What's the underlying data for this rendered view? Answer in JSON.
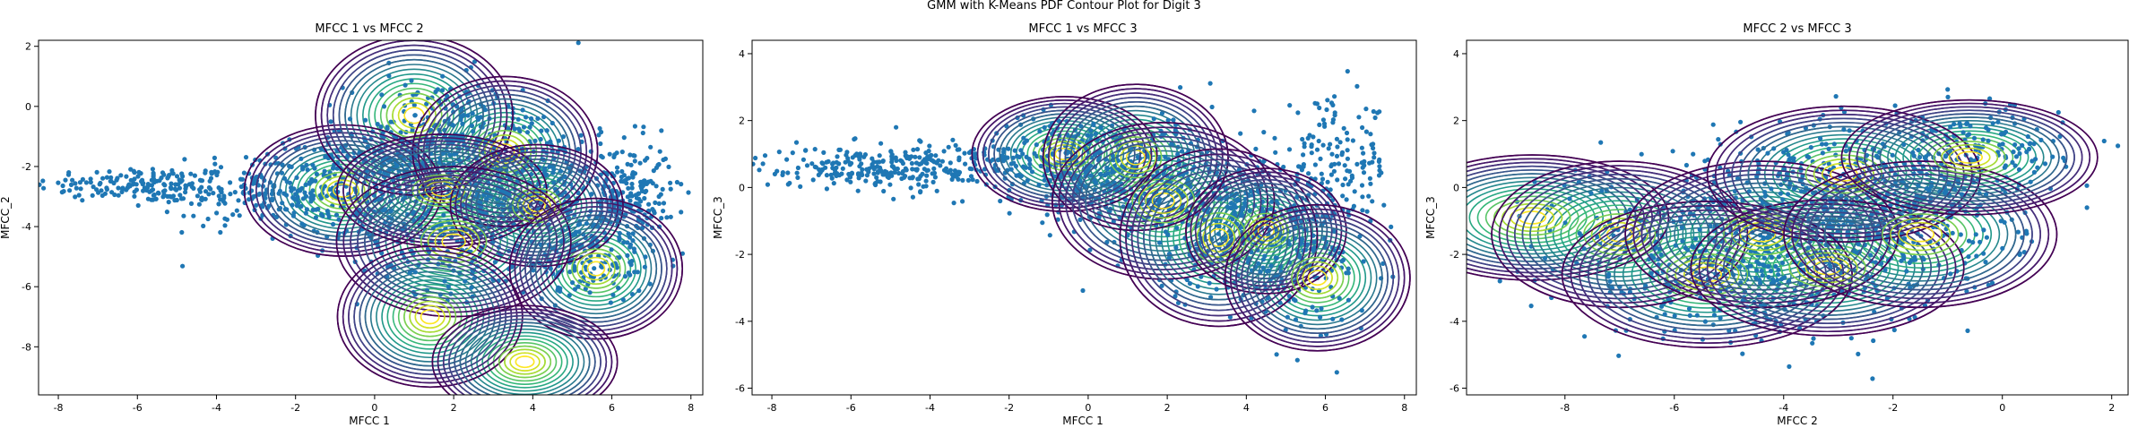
{
  "figure": {
    "suptitle": "GMM with K-Means PDF Contour Plot for Digit 3"
  },
  "colors": {
    "points": "#1f77b4",
    "axes": "#000000",
    "contour_low": "#440154",
    "contour_high": "#fde725"
  },
  "chart_data": [
    {
      "type": "scatter",
      "title": "MFCC 1 vs MFCC 2",
      "xlabel": "MFCC 1",
      "ylabel": "MFCC_2",
      "xlim": [
        -8.5,
        8.3
      ],
      "ylim": [
        -9.6,
        2.2
      ],
      "xticks": [
        -8,
        -6,
        -4,
        -2,
        0,
        2,
        4,
        6,
        8
      ],
      "yticks": [
        2,
        0,
        -2,
        -4,
        -6,
        -8
      ],
      "grid": false,
      "overlay": "gmm-pdf-contours",
      "components": [
        {
          "mean": [
            -0.8,
            -2.8
          ],
          "sd": [
            1.6,
            1.4
          ]
        },
        {
          "mean": [
            1.0,
            -0.3
          ],
          "sd": [
            1.6,
            1.7
          ]
        },
        {
          "mean": [
            3.3,
            -1.5
          ],
          "sd": [
            1.5,
            1.6
          ]
        },
        {
          "mean": [
            1.7,
            -2.8
          ],
          "sd": [
            1.7,
            1.2
          ]
        },
        {
          "mean": [
            4.1,
            -3.3
          ],
          "sd": [
            1.4,
            1.3
          ]
        },
        {
          "mean": [
            2.0,
            -4.5
          ],
          "sd": [
            1.9,
            1.6
          ]
        },
        {
          "mean": [
            5.6,
            -5.4
          ],
          "sd": [
            1.4,
            1.5
          ]
        },
        {
          "mean": [
            1.4,
            -7.0
          ],
          "sd": [
            1.5,
            1.5
          ]
        },
        {
          "mean": [
            3.8,
            -8.5
          ],
          "sd": [
            1.5,
            1.2
          ]
        }
      ],
      "clusters": [
        {
          "center": [
            -6.0,
            -2.6
          ],
          "spread": [
            1.3,
            0.3
          ],
          "n": 150
        },
        {
          "center": [
            -3.0,
            -2.8
          ],
          "spread": [
            1.2,
            0.6
          ],
          "n": 200
        },
        {
          "center": [
            -0.5,
            -2.7
          ],
          "spread": [
            1.0,
            0.9
          ],
          "n": 220
        },
        {
          "center": [
            1.5,
            -1.2
          ],
          "spread": [
            1.1,
            1.1
          ],
          "n": 240
        },
        {
          "center": [
            3.5,
            -2.0
          ],
          "spread": [
            1.0,
            1.2
          ],
          "n": 220
        },
        {
          "center": [
            2.0,
            -4.2
          ],
          "spread": [
            1.2,
            1.0
          ],
          "n": 220
        },
        {
          "center": [
            5.5,
            -3.5
          ],
          "spread": [
            1.0,
            1.1
          ],
          "n": 180
        },
        {
          "center": [
            6.5,
            -2.8
          ],
          "spread": [
            0.5,
            0.8
          ],
          "n": 150
        },
        {
          "center": [
            5.5,
            -5.3
          ],
          "spread": [
            0.8,
            0.5
          ],
          "n": 100
        }
      ]
    },
    {
      "type": "scatter",
      "title": "MFCC 1 vs MFCC 3",
      "xlabel": "MFCC 1",
      "ylabel": "MFCC_3",
      "xlim": [
        -8.5,
        8.3
      ],
      "ylim": [
        -6.2,
        4.4
      ],
      "xticks": [
        -8,
        -6,
        -4,
        -2,
        0,
        2,
        4,
        6,
        8
      ],
      "yticks": [
        4,
        2,
        0,
        -2,
        -4,
        -6
      ],
      "grid": false,
      "overlay": "gmm-pdf-contours",
      "components": [
        {
          "mean": [
            -0.6,
            1.0
          ],
          "sd": [
            1.5,
            1.1
          ]
        },
        {
          "mean": [
            1.2,
            0.9
          ],
          "sd": [
            1.5,
            1.4
          ]
        },
        {
          "mean": [
            1.9,
            -0.4
          ],
          "sd": [
            1.8,
            1.5
          ]
        },
        {
          "mean": [
            3.3,
            -1.5
          ],
          "sd": [
            1.6,
            1.7
          ]
        },
        {
          "mean": [
            4.5,
            -1.3
          ],
          "sd": [
            1.3,
            1.2
          ]
        },
        {
          "mean": [
            5.8,
            -2.7
          ],
          "sd": [
            1.5,
            1.4
          ]
        }
      ],
      "clusters": [
        {
          "center": [
            -6.0,
            0.6
          ],
          "spread": [
            1.2,
            0.3
          ],
          "n": 150
        },
        {
          "center": [
            -3.5,
            0.7
          ],
          "spread": [
            1.2,
            0.4
          ],
          "n": 180
        },
        {
          "center": [
            -0.5,
            0.8
          ],
          "spread": [
            1.0,
            0.7
          ],
          "n": 200
        },
        {
          "center": [
            1.5,
            0.2
          ],
          "spread": [
            1.2,
            1.0
          ],
          "n": 240
        },
        {
          "center": [
            3.5,
            -1.2
          ],
          "spread": [
            1.2,
            1.1
          ],
          "n": 240
        },
        {
          "center": [
            5.5,
            -1.8
          ],
          "spread": [
            0.9,
            1.2
          ],
          "n": 200
        },
        {
          "center": [
            6.3,
            0.8
          ],
          "spread": [
            0.7,
            0.9
          ],
          "n": 120
        }
      ]
    },
    {
      "type": "scatter",
      "title": "MFCC 2 vs MFCC 3",
      "xlabel": "MFCC 2",
      "ylabel": "MFCC_3",
      "xlim": [
        -9.8,
        2.3
      ],
      "ylim": [
        -6.2,
        4.4
      ],
      "xticks": [
        -8,
        -6,
        -4,
        -2,
        0,
        2
      ],
      "yticks": [
        4,
        2,
        0,
        -2,
        -4,
        -6
      ],
      "grid": false,
      "overlay": "gmm-pdf-contours",
      "components": [
        {
          "mean": [
            -8.6,
            -0.9
          ],
          "sd": [
            1.6,
            1.2
          ]
        },
        {
          "mean": [
            -7.0,
            -1.4
          ],
          "sd": [
            1.5,
            1.4
          ]
        },
        {
          "mean": [
            -5.4,
            -2.6
          ],
          "sd": [
            1.7,
            1.4
          ]
        },
        {
          "mean": [
            -4.4,
            -1.4
          ],
          "sd": [
            1.6,
            1.4
          ]
        },
        {
          "mean": [
            -3.2,
            -2.4
          ],
          "sd": [
            1.6,
            1.3
          ]
        },
        {
          "mean": [
            -2.9,
            0.4
          ],
          "sd": [
            1.6,
            1.3
          ]
        },
        {
          "mean": [
            -1.5,
            -1.4
          ],
          "sd": [
            1.6,
            1.4
          ]
        },
        {
          "mean": [
            -0.6,
            0.9
          ],
          "sd": [
            1.5,
            1.1
          ]
        }
      ],
      "clusters": [
        {
          "center": [
            -5.0,
            -1.2
          ],
          "spread": [
            1.2,
            1.1
          ],
          "n": 200
        },
        {
          "center": [
            -3.5,
            -2.2
          ],
          "spread": [
            1.1,
            1.0
          ],
          "n": 200
        },
        {
          "center": [
            -3.0,
            0.3
          ],
          "spread": [
            1.0,
            1.0
          ],
          "n": 200
        },
        {
          "center": [
            -1.5,
            -1.0
          ],
          "spread": [
            1.0,
            1.1
          ],
          "n": 200
        },
        {
          "center": [
            -0.5,
            1.0
          ],
          "spread": [
            0.8,
            0.7
          ],
          "n": 150
        },
        {
          "center": [
            -5.5,
            -3.0
          ],
          "spread": [
            1.2,
            0.8
          ],
          "n": 120
        },
        {
          "center": [
            -7.5,
            -1.0
          ],
          "spread": [
            0.8,
            0.8
          ],
          "n": 30
        }
      ]
    }
  ]
}
